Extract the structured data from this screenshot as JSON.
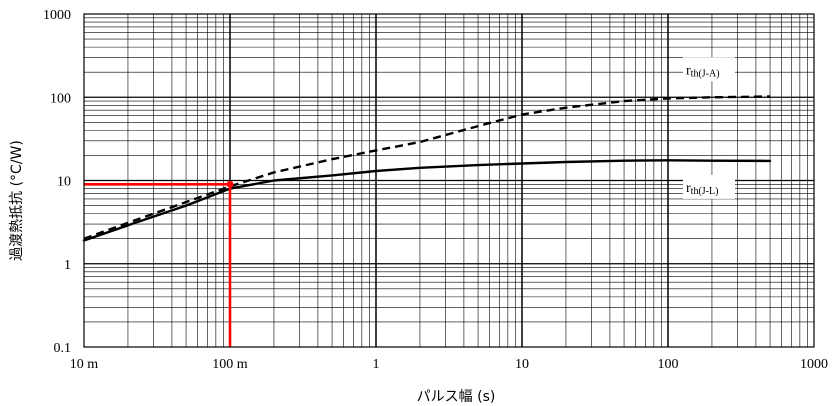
{
  "chart_data": {
    "type": "line",
    "xlabel": "パルス幅 (s)",
    "ylabel": "過渡熱抵抗 (°C/W)",
    "xscale": "log",
    "yscale": "log",
    "xlim": [
      0.01,
      1000
    ],
    "ylim": [
      0.1,
      1000
    ],
    "grid": true,
    "x_tick_labels": [
      "10 m",
      "100 m",
      "1",
      "10",
      "100",
      "1000"
    ],
    "y_tick_labels": [
      "0.1",
      "1",
      "10",
      "100",
      "1000"
    ],
    "series": [
      {
        "name": "rth(J-L)",
        "label_main": "r",
        "label_sub": "th(J-L)",
        "style": "solid",
        "color": "#000000",
        "x": [
          0.01,
          0.02,
          0.05,
          0.1,
          0.2,
          0.5,
          1,
          2,
          5,
          10,
          20,
          50,
          100,
          200,
          500
        ],
        "y": [
          1.9,
          2.9,
          5.0,
          8.0,
          10.0,
          11.5,
          13.0,
          14.2,
          15.3,
          16.0,
          16.7,
          17.3,
          17.5,
          17.3,
          17.2
        ]
      },
      {
        "name": "rth(J-A)",
        "label_main": "r",
        "label_sub": "th(J-A)",
        "style": "dashed",
        "color": "#000000",
        "x": [
          0.01,
          0.02,
          0.05,
          0.1,
          0.2,
          0.5,
          1,
          2,
          5,
          10,
          20,
          50,
          100,
          200,
          500
        ],
        "y": [
          2.0,
          3.1,
          5.5,
          8.5,
          12.5,
          18.0,
          23.0,
          29.0,
          45.0,
          62.0,
          75.0,
          90.0,
          97.0,
          100.0,
          102.0
        ]
      }
    ],
    "annotations": [
      {
        "type": "marker",
        "x": 0.1,
        "y": 9,
        "color": "#ff0000"
      }
    ],
    "annotation_color": "#ff0000"
  }
}
